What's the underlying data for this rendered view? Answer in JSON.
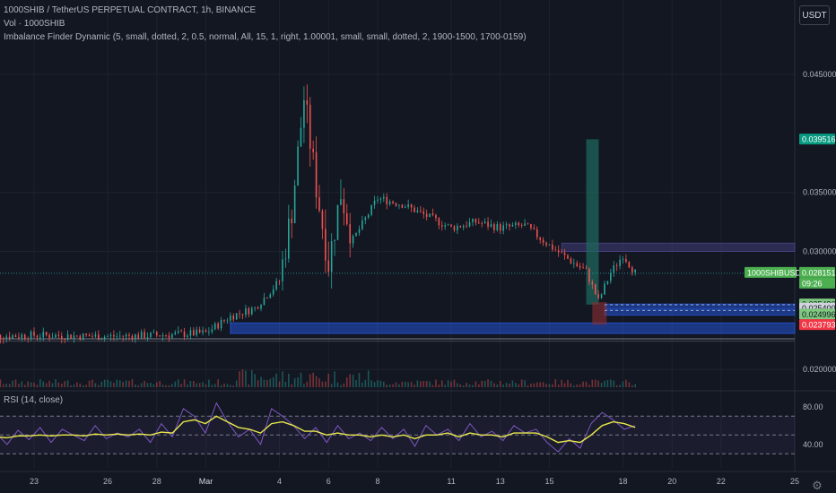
{
  "header": {
    "symbol_line": "1000SHIB / TetherUS PERPETUAL CONTRACT, 1h, BINANCE",
    "vol_line": "Vol · 1000SHIB",
    "indicator_line": "Imbalance Finder Dynamic (5, small, dotted, 2, 0.5, normal, All, 15, 1, right, 1.00001, small, small, dotted, 2, 1900-1500, 1700-0159)"
  },
  "currency_button": "USDT",
  "rsi_label": "RSI (14, close)",
  "settings_icon": "gear-icon",
  "colors": {
    "background": "#131722",
    "up": "#26a69a",
    "down": "#ef5350",
    "rsi_line": "#7e57c2",
    "rsi_ma": "#e8e84a",
    "zone_blue": "#2962ff",
    "zone_purple": "#5d4fa8",
    "teal_zone": "#1e6b5e",
    "last_price_label": "#4caf50",
    "low_price_label": "#f23645",
    "high_price_label": "#089981"
  },
  "chart_data": [
    {
      "type": "candlestick",
      "title": "1000SHIB / TetherUS PERPETUAL CONTRACT, 1h, BINANCE",
      "x_tick_labels": [
        "23",
        "26",
        "28",
        "Mar",
        "4",
        "6",
        "8",
        "11",
        "13",
        "15",
        "18",
        "20",
        "22",
        "25"
      ],
      "y_tick_labels": [
        "0.045000",
        "0.035000",
        "0.030000",
        "0.020000"
      ],
      "ylim": [
        0.0185,
        0.0475
      ],
      "grid": true,
      "price_path": [
        {
          "x": "Feb 21",
          "y": 0.0228
        },
        {
          "x": "Feb 23",
          "y": 0.0229
        },
        {
          "x": "Feb 26",
          "y": 0.0228
        },
        {
          "x": "Feb 28",
          "y": 0.0229
        },
        {
          "x": "Mar 1",
          "y": 0.0231
        },
        {
          "x": "Mar 2",
          "y": 0.0245
        },
        {
          "x": "Mar 3",
          "y": 0.0252
        },
        {
          "x": "Mar 4",
          "y": 0.0275
        },
        {
          "x": "Mar 4 12h",
          "y": 0.0335
        },
        {
          "x": "Mar 5",
          "y": 0.043
        },
        {
          "x": "Mar 5 12h",
          "y": 0.0355
        },
        {
          "x": "Mar 6",
          "y": 0.029
        },
        {
          "x": "Mar 6 12h",
          "y": 0.035
        },
        {
          "x": "Mar 7",
          "y": 0.031
        },
        {
          "x": "Mar 8",
          "y": 0.0345
        },
        {
          "x": "Mar 9",
          "y": 0.034
        },
        {
          "x": "Mar 10",
          "y": 0.033
        },
        {
          "x": "Mar 11",
          "y": 0.032
        },
        {
          "x": "Mar 12",
          "y": 0.0325
        },
        {
          "x": "Mar 13",
          "y": 0.032
        },
        {
          "x": "Mar 14",
          "y": 0.0322
        },
        {
          "x": "Mar 15",
          "y": 0.0305
        },
        {
          "x": "Mar 16",
          "y": 0.029
        },
        {
          "x": "Mar 16 12h",
          "y": 0.0283
        },
        {
          "x": "Mar 17",
          "y": 0.0258
        },
        {
          "x": "Mar 17 12h",
          "y": 0.0282
        },
        {
          "x": "Mar 18",
          "y": 0.0297
        },
        {
          "x": "Mar 18 12h",
          "y": 0.0282
        }
      ],
      "price_labels": [
        {
          "text": "0.039516",
          "kind": "high"
        },
        {
          "text": "1000SHIBUSDT.P",
          "kind": "symbol"
        },
        {
          "text": "0.028151",
          "kind": "last"
        },
        {
          "text": "09:26",
          "kind": "countdown"
        },
        {
          "text": "0.025486",
          "kind": "zone"
        },
        {
          "text": "0.025400",
          "kind": "zone_dark"
        },
        {
          "text": "0.024996",
          "kind": "zone"
        },
        {
          "text": "0.023793",
          "kind": "low"
        }
      ],
      "zones": [
        {
          "name": "purple-imbalance",
          "y_top": 0.0307,
          "y_bottom": 0.03,
          "x_start": "Mar 15 12h",
          "color": "purple"
        },
        {
          "name": "blue-imbalance-upper",
          "y_top": 0.02555,
          "y_bottom": 0.02515,
          "x_start": "Mar 17 6h",
          "color": "blue"
        },
        {
          "name": "blue-imbalance-lower",
          "y_top": 0.02505,
          "y_bottom": 0.0246,
          "x_start": "Mar 17 6h",
          "color": "blue"
        },
        {
          "name": "blue-imbalance-bottom",
          "y_top": 0.02395,
          "y_bottom": 0.02305,
          "x_start": "Mar 2",
          "color": "blue"
        }
      ]
    },
    {
      "type": "line",
      "title": "RSI (14, close)",
      "y_tick_labels": [
        "80.00",
        "40.00"
      ],
      "ylim": [
        15,
        95
      ],
      "bands": [
        70,
        50,
        30
      ],
      "series": [
        {
          "values": [
            48,
            52,
            40,
            55,
            45,
            58,
            42,
            56,
            50,
            44,
            60,
            46,
            52,
            48,
            56,
            42,
            62,
            48,
            78,
            70,
            52,
            84,
            64,
            48,
            56,
            40,
            78,
            70,
            60,
            46,
            58,
            42,
            60,
            46,
            52,
            44,
            58,
            46,
            56,
            38,
            60,
            50,
            56,
            44,
            62,
            48,
            54,
            44,
            60,
            52,
            56,
            42,
            32,
            46,
            36,
            62,
            74,
            66,
            56,
            60
          ]
        },
        {
          "values": [
            48,
            48,
            47,
            49,
            49,
            50,
            49,
            50,
            50,
            49,
            51,
            50,
            51,
            50,
            51,
            50,
            53,
            52,
            64,
            66,
            62,
            70,
            64,
            58,
            56,
            52,
            62,
            64,
            60,
            54,
            54,
            50,
            52,
            50,
            50,
            48,
            50,
            48,
            50,
            46,
            50,
            50,
            52,
            48,
            52,
            50,
            50,
            48,
            52,
            52,
            52,
            48,
            42,
            44,
            42,
            50,
            60,
            64,
            62,
            58
          ]
        }
      ]
    }
  ]
}
